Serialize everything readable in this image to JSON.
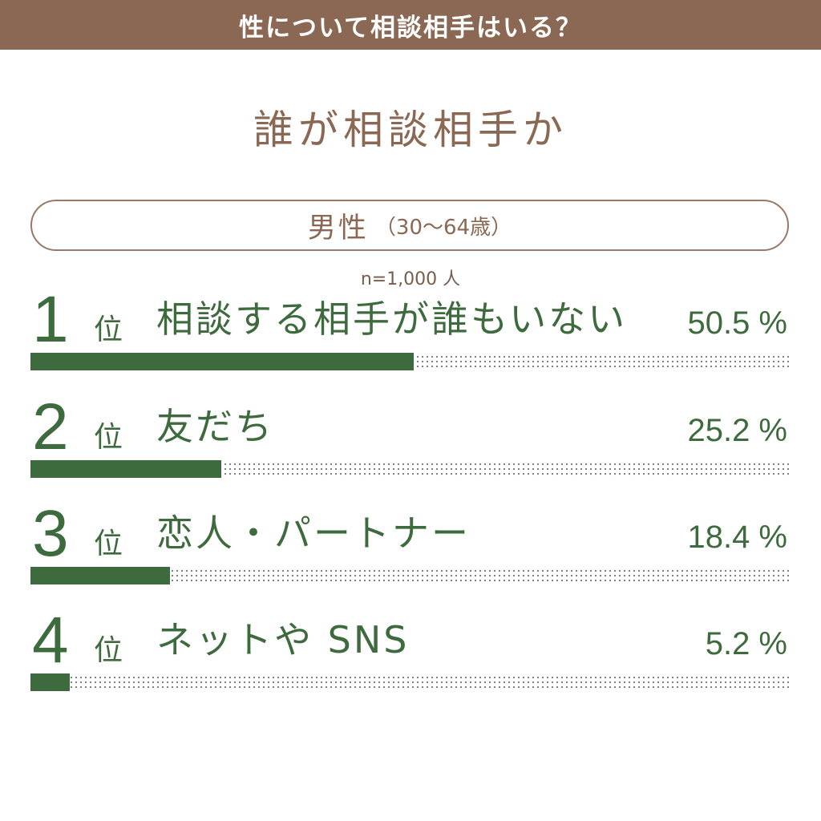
{
  "header": {
    "title": "性について相談相手はいる？"
  },
  "subtitle": "誰が相談相手か",
  "segment": {
    "label": "男性",
    "range": "（30〜64歳）"
  },
  "sample_size": "n=1,000 人",
  "colors": {
    "brown": "#8a6853",
    "green": "#3e6b3e",
    "pill_border": "#9a7868",
    "sample_text": "#7a5c4c"
  },
  "chart_data": {
    "type": "bar",
    "orientation": "horizontal",
    "ranks": [
      "1",
      "2",
      "3",
      "4"
    ],
    "rank_suffix": "位",
    "categories": [
      "相談する相手が誰もいない",
      "友だち",
      "恋人・パートナー",
      "ネットや SNS"
    ],
    "values": [
      50.5,
      25.2,
      18.4,
      5.2
    ],
    "value_labels": [
      "50.5 %",
      "25.2 %",
      "18.4 %",
      "5.2 %"
    ],
    "xlim": [
      0,
      100
    ]
  }
}
